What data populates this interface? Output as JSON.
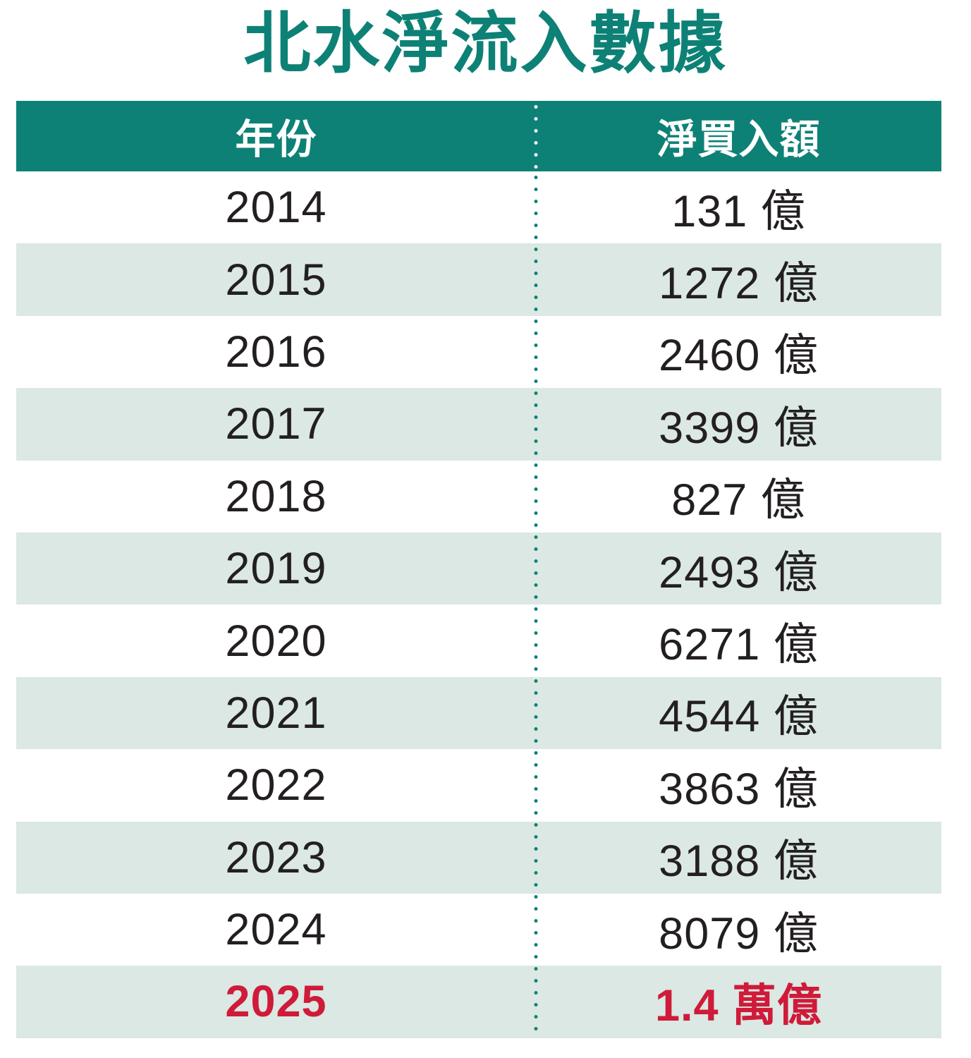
{
  "title": "北水淨流入數據",
  "colors": {
    "teal": "#0E8176",
    "row_alt": "#DBE8E4",
    "ink": "#231F20",
    "highlight_red": "#CF1B39",
    "background": "#FFFFFF"
  },
  "table": {
    "header": {
      "year_label": "年份",
      "value_label": "淨買入額"
    },
    "rows": [
      {
        "year": "2014",
        "value": "131 億",
        "highlight": false
      },
      {
        "year": "2015",
        "value": "1272 億",
        "highlight": false
      },
      {
        "year": "2016",
        "value": "2460 億",
        "highlight": false
      },
      {
        "year": "2017",
        "value": "3399 億",
        "highlight": false
      },
      {
        "year": "2018",
        "value": "827 億",
        "highlight": false
      },
      {
        "year": "2019",
        "value": "2493 億",
        "highlight": false
      },
      {
        "year": "2020",
        "value": "6271 億",
        "highlight": false
      },
      {
        "year": "2021",
        "value": "4544 億",
        "highlight": false
      },
      {
        "year": "2022",
        "value": "3863 億",
        "highlight": false
      },
      {
        "year": "2023",
        "value": "3188 億",
        "highlight": false
      },
      {
        "year": "2024",
        "value": "8079 億",
        "highlight": false
      },
      {
        "year": "2025",
        "value": "1.4 萬億",
        "highlight": true
      }
    ]
  },
  "chart_data": {
    "type": "table",
    "title": "北水淨流入數據",
    "columns": [
      "年份",
      "淨買入額"
    ],
    "categories": [
      "2014",
      "2015",
      "2016",
      "2017",
      "2018",
      "2019",
      "2020",
      "2021",
      "2022",
      "2023",
      "2024",
      "2025"
    ],
    "values_text": [
      "131 億",
      "1272 億",
      "2460 億",
      "3399 億",
      "827 億",
      "2493 億",
      "6271 億",
      "4544 億",
      "3863 億",
      "3188 億",
      "8079 億",
      "1.4 萬億"
    ],
    "values_yi": [
      131,
      1272,
      2460,
      3399,
      827,
      2493,
      6271,
      4544,
      3863,
      3188,
      8079,
      14000
    ],
    "unit_label": "億",
    "highlighted_row": "2025",
    "layout": {
      "header_background": "#0E8176",
      "alternating_rows": true,
      "column_divider": "dotted"
    }
  }
}
